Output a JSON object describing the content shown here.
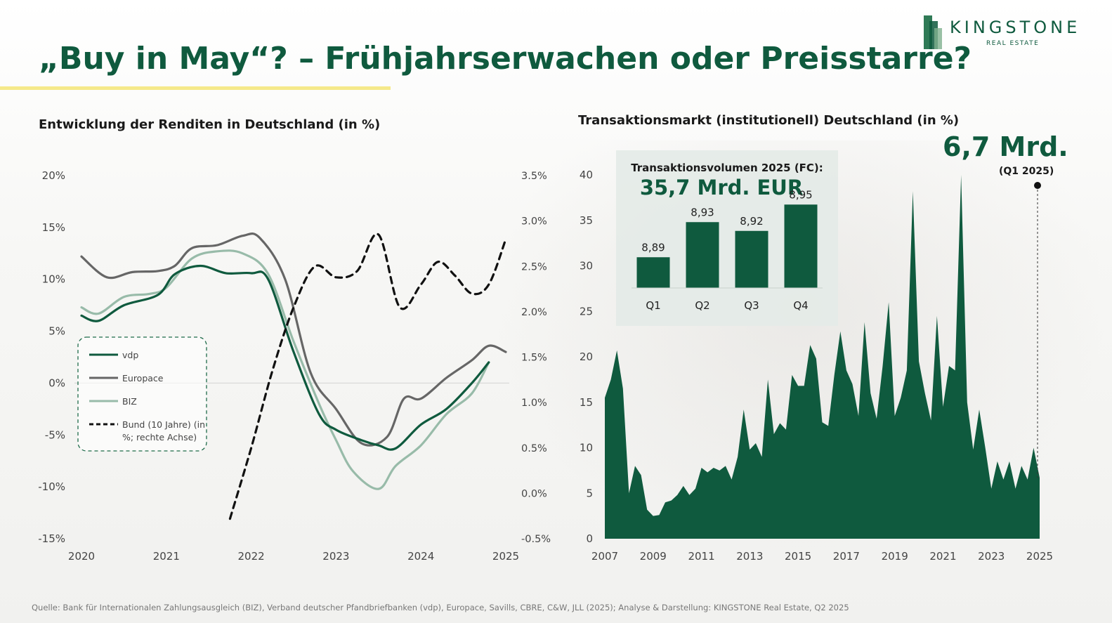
{
  "title": "„Buy in May“? – Frühjahrserwachen oder Preisstarre?",
  "logo": {
    "name": "KINGSTONE",
    "subtitle": "REAL ESTATE"
  },
  "footer": {
    "source": "Quelle: Bank für Internationalen Zahlungsausgleich (BIZ), Verband deutscher Pfandbriefbanken (vdp), Europace, Savills, CBRE, C&W, JLL (2025); Analyse & Darstellung: KINGSTONE Real Estate, Q2 2025"
  },
  "colors": {
    "brand_green": "#0f5a3e",
    "vdp": "#0f5a3e",
    "europace": "#666666",
    "biz": "#98bba9",
    "bund": "#111111",
    "accent_yellow": "#f5e98a"
  },
  "chart_data": [
    {
      "type": "line",
      "title": "Entwicklung der Renditen in Deutschland (in %)",
      "x_ticks": [
        "2020",
        "2021",
        "2022",
        "2023",
        "2024",
        "2025"
      ],
      "xlim": [
        2020,
        2025
      ],
      "y_ticks": [
        "20%",
        "15%",
        "10%",
        "5%",
        "0%",
        "-5%",
        "-10%",
        "-15%"
      ],
      "ylim": [
        -15,
        20
      ],
      "y2_ticks": [
        "3.5%",
        "3.0%",
        "2.5%",
        "2.0%",
        "1.5%",
        "1.0%",
        "0.5%",
        "0.0%",
        "-0.5%"
      ],
      "y2lim": [
        -0.5,
        3.5
      ],
      "legend_position": "left-middle",
      "series": [
        {
          "name": "vdp",
          "axis": "left",
          "style": "solid",
          "x": [
            2020.0,
            2020.2,
            2020.5,
            2020.9,
            2021.1,
            2021.4,
            2021.7,
            2022.0,
            2022.2,
            2022.5,
            2022.8,
            2023.0,
            2023.3,
            2023.5,
            2023.7,
            2024.0,
            2024.3,
            2024.6,
            2024.8
          ],
          "y": [
            6.5,
            6.0,
            7.5,
            8.5,
            10.5,
            11.3,
            10.6,
            10.6,
            10.0,
            3.0,
            -3.0,
            -4.5,
            -5.5,
            -6.0,
            -6.3,
            -4.0,
            -2.5,
            0.0,
            2.0
          ]
        },
        {
          "name": "Europace",
          "axis": "left",
          "style": "solid",
          "x": [
            2020.0,
            2020.3,
            2020.6,
            2020.9,
            2021.1,
            2021.3,
            2021.6,
            2021.9,
            2022.1,
            2022.4,
            2022.7,
            2023.0,
            2023.3,
            2023.6,
            2023.8,
            2024.0,
            2024.3,
            2024.6,
            2024.8,
            2025.0
          ],
          "y": [
            12.2,
            10.2,
            10.7,
            10.8,
            11.3,
            13.0,
            13.3,
            14.2,
            14.0,
            10.0,
            1.0,
            -2.5,
            -5.8,
            -5.2,
            -1.5,
            -1.5,
            0.5,
            2.2,
            3.6,
            3.0
          ]
        },
        {
          "name": "BIZ",
          "axis": "left",
          "style": "solid",
          "x": [
            2020.0,
            2020.2,
            2020.5,
            2020.8,
            2021.0,
            2021.3,
            2021.6,
            2021.9,
            2022.2,
            2022.5,
            2022.8,
            2023.0,
            2023.2,
            2023.5,
            2023.7,
            2024.0,
            2024.3,
            2024.6,
            2024.8
          ],
          "y": [
            7.3,
            6.7,
            8.3,
            8.6,
            9.2,
            12.0,
            12.7,
            12.5,
            10.5,
            4.0,
            -2.0,
            -5.5,
            -8.5,
            -10.2,
            -8.0,
            -6.0,
            -3.0,
            -1.0,
            2.0
          ]
        },
        {
          "name": "Bund (10 Jahre) (in %; rechte Achse)",
          "axis": "right",
          "style": "dashed",
          "x": [
            2021.75,
            2022.0,
            2022.25,
            2022.5,
            2022.75,
            2023.0,
            2023.25,
            2023.5,
            2023.75,
            2024.0,
            2024.2,
            2024.4,
            2024.6,
            2024.8,
            2025.0
          ],
          "y": [
            -0.28,
            0.5,
            1.35,
            2.05,
            2.5,
            2.38,
            2.45,
            2.85,
            2.05,
            2.3,
            2.55,
            2.4,
            2.2,
            2.3,
            2.8
          ]
        }
      ]
    },
    {
      "type": "area",
      "title": "Transaktionsmarkt (institutionell) Deutschland (in %)",
      "x_ticks": [
        "2007",
        "2009",
        "2011",
        "2013",
        "2015",
        "2017",
        "2019",
        "2021",
        "2023",
        "2025"
      ],
      "xlim": [
        2007,
        2025
      ],
      "y_ticks": [
        "40",
        "35",
        "30",
        "25",
        "20",
        "15",
        "10",
        "5",
        "0"
      ],
      "ylim": [
        0,
        40
      ],
      "series": [
        {
          "name": "Transaktionsvolumen",
          "x": [
            2007.0,
            2007.25,
            2007.5,
            2007.75,
            2008.0,
            2008.25,
            2008.5,
            2008.75,
            2009.0,
            2009.25,
            2009.5,
            2009.75,
            2010.0,
            2010.25,
            2010.5,
            2010.75,
            2011.0,
            2011.25,
            2011.5,
            2011.75,
            2012.0,
            2012.25,
            2012.5,
            2012.75,
            2013.0,
            2013.25,
            2013.5,
            2013.75,
            2014.0,
            2014.25,
            2014.5,
            2014.75,
            2015.0,
            2015.25,
            2015.5,
            2015.75,
            2016.0,
            2016.25,
            2016.5,
            2016.75,
            2017.0,
            2017.25,
            2017.5,
            2017.75,
            2018.0,
            2018.25,
            2018.5,
            2018.75,
            2019.0,
            2019.25,
            2019.5,
            2019.75,
            2020.0,
            2020.25,
            2020.5,
            2020.75,
            2021.0,
            2021.25,
            2021.5,
            2021.75,
            2022.0,
            2022.25,
            2022.5,
            2022.75,
            2023.0,
            2023.25,
            2023.5,
            2023.75,
            2024.0,
            2024.25,
            2024.5,
            2024.75,
            2025.0
          ],
          "y": [
            15.5,
            17.5,
            20.7,
            16.5,
            5.0,
            8.0,
            7.0,
            3.2,
            2.5,
            2.6,
            4.0,
            4.2,
            4.8,
            5.8,
            4.8,
            5.5,
            7.8,
            7.3,
            7.8,
            7.5,
            8.0,
            6.5,
            9.0,
            14.2,
            9.8,
            10.5,
            9.0,
            17.5,
            11.5,
            12.7,
            12.0,
            18.0,
            16.8,
            16.8,
            21.3,
            19.8,
            12.8,
            12.4,
            18.0,
            22.8,
            18.5,
            17.0,
            13.5,
            23.8,
            16.0,
            13.2,
            19.0,
            26.0,
            13.5,
            15.5,
            18.5,
            38.2,
            19.5,
            16.0,
            13.0,
            24.5,
            14.5,
            19.0,
            18.5,
            40.0,
            15.0,
            9.8,
            14.2,
            10.0,
            5.5,
            8.5,
            6.5,
            8.5,
            5.5,
            8.0,
            6.5,
            10.0,
            6.7
          ]
        }
      ],
      "annotation": {
        "value": "6,7 Mrd.",
        "period": "(Q1 2025)"
      },
      "inset": {
        "type": "bar",
        "title": "Transaktionsvolumen 2025 (FC):",
        "total": "35,7 Mrd. EUR",
        "categories": [
          "Q1",
          "Q2",
          "Q3",
          "Q4"
        ],
        "values": [
          8.89,
          8.93,
          8.92,
          8.95
        ],
        "labels": [
          "8,89",
          "8,93",
          "8,92",
          "8,95"
        ]
      }
    }
  ]
}
